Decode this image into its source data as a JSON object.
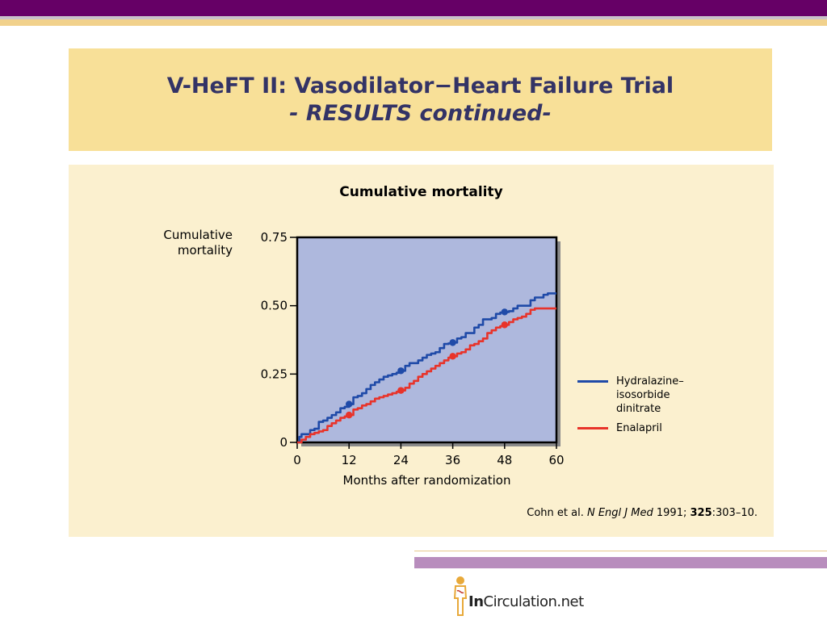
{
  "slide": {
    "title": "V-HeFT II: Vasodilator−Heart Failure Trial",
    "subtitle": "- RESULTS continued-"
  },
  "chart_data": {
    "type": "line",
    "title": "Cumulative mortality",
    "ylabel": "Cumulative mortality",
    "xlabel": "Months after randomization",
    "xlim": [
      0,
      60
    ],
    "ylim": [
      0,
      0.75
    ],
    "x_ticks": [
      0,
      12,
      24,
      36,
      48,
      60
    ],
    "x_tick_labels": [
      "0",
      "12",
      "24",
      "36",
      "48",
      "60"
    ],
    "y_ticks": [
      0,
      0.25,
      0.5,
      0.75
    ],
    "y_tick_labels": [
      "0",
      "0.25",
      "0.50",
      "0.75"
    ],
    "legend_position": "right",
    "series": [
      {
        "name": "Hydralazine–isosorbide dinitrate",
        "color": "#1f4aa8",
        "x": [
          0,
          0.5,
          1,
          3,
          4,
          5,
          6,
          7,
          8,
          9,
          10,
          11,
          12,
          13,
          14,
          15,
          16,
          17,
          18,
          19,
          20,
          21,
          22,
          23,
          24,
          25,
          26,
          27,
          28,
          29,
          30,
          31,
          32,
          33,
          34,
          35,
          36,
          37,
          38,
          39,
          40,
          41,
          42,
          43,
          44,
          45,
          46,
          47,
          48,
          49,
          50,
          51,
          52,
          53,
          54,
          55,
          56,
          57,
          58,
          59,
          60
        ],
        "y": [
          0,
          0.02,
          0.03,
          0.045,
          0.05,
          0.075,
          0.08,
          0.09,
          0.1,
          0.11,
          0.125,
          0.13,
          0.14,
          0.165,
          0.17,
          0.18,
          0.195,
          0.21,
          0.22,
          0.23,
          0.24,
          0.245,
          0.25,
          0.255,
          0.262,
          0.28,
          0.29,
          0.29,
          0.3,
          0.31,
          0.32,
          0.325,
          0.33,
          0.345,
          0.36,
          0.362,
          0.365,
          0.38,
          0.385,
          0.4,
          0.4,
          0.42,
          0.43,
          0.45,
          0.45,
          0.455,
          0.47,
          0.475,
          0.477,
          0.48,
          0.49,
          0.5,
          0.5,
          0.5,
          0.52,
          0.53,
          0.53,
          0.54,
          0.545,
          0.545,
          0.545
        ],
        "markers_x": [
          12,
          24,
          36,
          48
        ],
        "markers_y": [
          0.14,
          0.262,
          0.365,
          0.477
        ]
      },
      {
        "name": "Enalapril",
        "color": "#e8332a",
        "x": [
          0,
          1,
          2,
          3,
          4,
          5,
          6,
          7,
          8,
          9,
          10,
          11,
          12,
          13,
          14,
          15,
          16,
          17,
          18,
          19,
          20,
          21,
          22,
          23,
          24,
          25,
          26,
          27,
          28,
          29,
          30,
          31,
          32,
          33,
          34,
          35,
          36,
          37,
          38,
          39,
          40,
          41,
          42,
          43,
          44,
          45,
          46,
          47,
          48,
          49,
          50,
          51,
          52,
          53,
          54,
          55,
          56,
          57,
          58,
          59,
          60
        ],
        "y": [
          0,
          0.01,
          0.02,
          0.03,
          0.035,
          0.04,
          0.045,
          0.06,
          0.07,
          0.08,
          0.09,
          0.095,
          0.1,
          0.12,
          0.125,
          0.135,
          0.14,
          0.15,
          0.16,
          0.165,
          0.17,
          0.175,
          0.18,
          0.185,
          0.19,
          0.2,
          0.215,
          0.225,
          0.24,
          0.25,
          0.26,
          0.27,
          0.28,
          0.29,
          0.3,
          0.31,
          0.315,
          0.325,
          0.33,
          0.34,
          0.355,
          0.36,
          0.37,
          0.38,
          0.4,
          0.41,
          0.42,
          0.425,
          0.43,
          0.44,
          0.45,
          0.455,
          0.46,
          0.47,
          0.485,
          0.49,
          0.49,
          0.49,
          0.49,
          0.49,
          0.49
        ],
        "markers_x": [
          12,
          24,
          36,
          48
        ],
        "markers_y": [
          0.1,
          0.19,
          0.315,
          0.43
        ]
      }
    ],
    "legend": [
      {
        "label": "Hydralazine–\nisosorbide\ndinitrate",
        "color": "#1f4aa8"
      },
      {
        "label": "Enalapril",
        "color": "#e8332a"
      }
    ]
  },
  "citation": {
    "authors": "Cohn et al.",
    "journal": "N Engl J Med",
    "year": "1991;",
    "volume": "325",
    "pages": ":303–10."
  },
  "logo": {
    "brand_bold": "In",
    "brand_rest": "Circulation.net"
  },
  "colors": {
    "header_band": "#660066",
    "title_box": "#f8e098",
    "content_box": "#fbf0cf",
    "plot_area": "#aeb8dd",
    "title_text": "#333366"
  }
}
